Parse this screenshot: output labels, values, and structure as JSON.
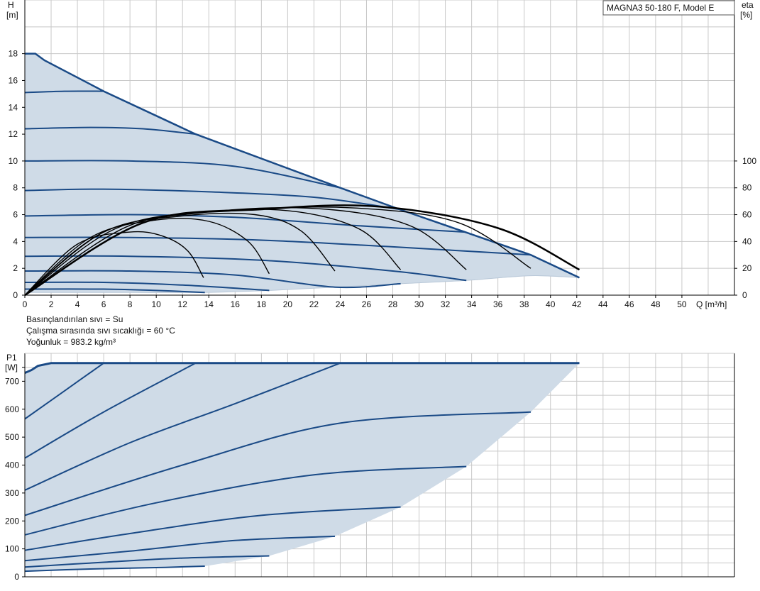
{
  "legend_box": "MAGNA3 50-180 F, Model E",
  "fluid_info": {
    "line1": "Basınçlandırılan sıvı = Su",
    "line2": "Çalışma sırasında sıvı sıcaklığı = 60 °C",
    "line3": "Yoğunluk = 983.2 kg/m³"
  },
  "colors": {
    "curve": "#1a4a86",
    "efficiency": "#000000",
    "fill": "#cfdbe7",
    "grid": "#c8c8c8",
    "axis": "#000000"
  },
  "chart_data": [
    {
      "type": "line",
      "name": "head-curves",
      "ylabel_line1": "H",
      "ylabel_line2": "[m]",
      "y2label_line1": "eta",
      "y2label_line2": "[%]",
      "xlabel": "Q [m³/h]",
      "xlim": [
        0,
        54
      ],
      "ylim": [
        0,
        22
      ],
      "y2lim": [
        0,
        220
      ],
      "x_ticks": [
        0,
        2,
        4,
        6,
        8,
        10,
        12,
        14,
        16,
        18,
        20,
        22,
        24,
        26,
        28,
        30,
        32,
        34,
        36,
        38,
        40,
        42,
        44,
        46,
        48,
        50
      ],
      "y_ticks": [
        0,
        2,
        4,
        6,
        8,
        10,
        12,
        14,
        16,
        18
      ],
      "y2_ticks": [
        0,
        20,
        40,
        60,
        80,
        100
      ],
      "grid": true,
      "max_curve": [
        [
          0,
          18.0
        ],
        [
          0.8,
          18.0
        ],
        [
          1.5,
          17.5
        ],
        [
          6,
          15.2
        ],
        [
          13,
          12.0
        ],
        [
          24,
          8.0
        ],
        [
          28.5,
          6.4
        ],
        [
          33.5,
          4.7
        ],
        [
          38.5,
          3.0
        ],
        [
          42.2,
          1.3
        ]
      ],
      "min_curve": [
        [
          0,
          0.2
        ],
        [
          8,
          0.2
        ],
        [
          13.7,
          0.2
        ],
        [
          18.6,
          0.35
        ],
        [
          23.6,
          0.6
        ],
        [
          28.6,
          0.85
        ],
        [
          33.6,
          1.1
        ],
        [
          38.5,
          1.45
        ],
        [
          42.2,
          1.3
        ]
      ],
      "head_series": [
        {
          "points": [
            [
              0,
              15.1
            ],
            [
              3,
              15.2
            ],
            [
              6,
              15.2
            ]
          ]
        },
        {
          "points": [
            [
              0,
              12.4
            ],
            [
              5,
              12.5
            ],
            [
              9,
              12.4
            ],
            [
              13,
              12.0
            ]
          ]
        },
        {
          "points": [
            [
              0,
              10.0
            ],
            [
              8,
              10.0
            ],
            [
              16,
              9.6
            ],
            [
              24,
              8.0
            ]
          ]
        },
        {
          "points": [
            [
              0,
              7.8
            ],
            [
              6,
              7.9
            ],
            [
              14,
              7.7
            ],
            [
              22,
              7.3
            ],
            [
              28.5,
              6.4
            ]
          ]
        },
        {
          "points": [
            [
              0,
              5.9
            ],
            [
              8,
              6.0
            ],
            [
              16,
              5.8
            ],
            [
              25,
              5.2
            ],
            [
              33.5,
              4.7
            ]
          ]
        },
        {
          "points": [
            [
              0,
              4.3
            ],
            [
              8,
              4.3
            ],
            [
              18,
              4.1
            ],
            [
              28,
              3.6
            ],
            [
              38.5,
              3.0
            ]
          ]
        },
        {
          "points": [
            [
              0,
              2.9
            ],
            [
              8,
              2.9
            ],
            [
              18,
              2.6
            ],
            [
              28,
              1.8
            ],
            [
              33.6,
              1.1
            ]
          ]
        },
        {
          "points": [
            [
              0,
              1.8
            ],
            [
              8,
              1.8
            ],
            [
              16,
              1.5
            ],
            [
              23.6,
              0.6
            ],
            [
              28.6,
              0.85
            ]
          ]
        },
        {
          "points": [
            [
              0,
              0.95
            ],
            [
              6,
              0.95
            ],
            [
              12,
              0.75
            ],
            [
              18.6,
              0.35
            ]
          ]
        },
        {
          "points": [
            [
              0,
              0.45
            ],
            [
              6,
              0.45
            ],
            [
              10,
              0.35
            ],
            [
              13.7,
              0.2
            ]
          ]
        }
      ],
      "efficiency_series": [
        {
          "points": [
            [
              0,
              0
            ],
            [
              4,
              38
            ],
            [
              8,
              47
            ],
            [
              10.5,
              44
            ],
            [
              12.4,
              33
            ],
            [
              13.6,
              13
            ]
          ]
        },
        {
          "points": [
            [
              0,
              0
            ],
            [
              5,
              43
            ],
            [
              10,
              56
            ],
            [
              14,
              55
            ],
            [
              17,
              40
            ],
            [
              18.6,
              16
            ]
          ]
        },
        {
          "points": [
            [
              0,
              0
            ],
            [
              6,
              47
            ],
            [
              12,
              59
            ],
            [
              17.5,
              60
            ],
            [
              21,
              48
            ],
            [
              23.6,
              18
            ]
          ]
        },
        {
          "points": [
            [
              0,
              0
            ],
            [
              6,
              47
            ],
            [
              13,
              61
            ],
            [
              20,
              63
            ],
            [
              25.5,
              49
            ],
            [
              28.6,
              19
            ]
          ]
        },
        {
          "points": [
            [
              0,
              0
            ],
            [
              7,
              50
            ],
            [
              15,
              63
            ],
            [
              23,
              64
            ],
            [
              29.5,
              51
            ],
            [
              33.6,
              19
            ]
          ]
        },
        {
          "points": [
            [
              0,
              0
            ],
            [
              8,
              52
            ],
            [
              16,
              63
            ],
            [
              25,
              65
            ],
            [
              33,
              54
            ],
            [
              38.5,
              20
            ]
          ]
        },
        {
          "points": [
            [
              0,
              0
            ],
            [
              9,
              54
            ],
            [
              18,
              64
            ],
            [
              27,
              66
            ],
            [
              36,
              50
            ],
            [
              42.2,
              19
            ]
          ]
        }
      ]
    },
    {
      "type": "line",
      "name": "power-curves",
      "ylabel_line1": "P1",
      "ylabel_line2": "[W]",
      "xlim": [
        0,
        54
      ],
      "ylim": [
        0,
        800
      ],
      "y_ticks": [
        0,
        100,
        200,
        300,
        400,
        500,
        600,
        700
      ],
      "grid": true,
      "max_curve": [
        [
          0,
          730
        ],
        [
          0.5,
          740
        ],
        [
          1,
          755
        ],
        [
          2,
          765
        ],
        [
          42.2,
          765
        ]
      ],
      "boundary_curve": [
        [
          42.2,
          765
        ],
        [
          38.5,
          590
        ],
        [
          33.6,
          395
        ],
        [
          28.6,
          250
        ],
        [
          23.6,
          145
        ],
        [
          18.6,
          75
        ],
        [
          13.7,
          38
        ]
      ],
      "power_series": [
        {
          "points": [
            [
              0,
              565
            ],
            [
              3,
              665
            ],
            [
              6,
              765
            ]
          ]
        },
        {
          "points": [
            [
              0,
              425
            ],
            [
              6,
              590
            ],
            [
              13,
              765
            ]
          ]
        },
        {
          "points": [
            [
              0,
              310
            ],
            [
              8,
              480
            ],
            [
              16,
              620
            ],
            [
              24,
              765
            ]
          ]
        },
        {
          "points": [
            [
              0,
              220
            ],
            [
              12,
              400
            ],
            [
              24,
              550
            ],
            [
              38.5,
              590
            ]
          ]
        },
        {
          "points": [
            [
              0,
              150
            ],
            [
              10,
              265
            ],
            [
              22,
              365
            ],
            [
              33.6,
              395
            ]
          ]
        },
        {
          "points": [
            [
              0,
              95
            ],
            [
              8,
              155
            ],
            [
              18,
              220
            ],
            [
              28.6,
              250
            ]
          ]
        },
        {
          "points": [
            [
              0,
              58
            ],
            [
              8,
              92
            ],
            [
              16,
              130
            ],
            [
              23.6,
              145
            ]
          ]
        },
        {
          "points": [
            [
              0,
              35
            ],
            [
              6,
              52
            ],
            [
              12,
              67
            ],
            [
              18.6,
              75
            ]
          ]
        },
        {
          "points": [
            [
              0,
              20
            ],
            [
              5,
              28
            ],
            [
              10,
              33
            ],
            [
              13.7,
              38
            ]
          ]
        }
      ]
    }
  ]
}
